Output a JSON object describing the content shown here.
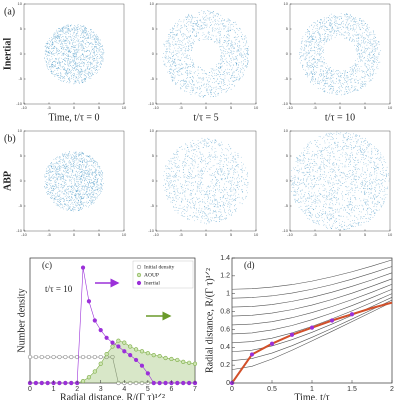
{
  "chart_data": [
    {
      "type": "particles",
      "panel_label": "(a)",
      "row_label": "Inertial",
      "xlabel": "Time, t/τ = 0",
      "xlim": [
        -10,
        10
      ],
      "ylim": [
        -10,
        10
      ],
      "xticks": [
        -10,
        -5,
        0,
        5,
        10
      ],
      "yticks": [
        -10,
        -5,
        0,
        5,
        10
      ],
      "color": "#3a8fc0"
    },
    {
      "type": "particles",
      "xlabel": "t/τ = 5",
      "xlim": [
        -10,
        10
      ],
      "ylim": [
        -10,
        10
      ],
      "xticks": [
        -10,
        -5,
        0,
        5,
        10
      ],
      "yticks": [
        -10,
        -5,
        0,
        5,
        10
      ],
      "color": "#3a8fc0"
    },
    {
      "type": "particles",
      "xlabel": "t/τ = 10",
      "xlim": [
        -10,
        10
      ],
      "ylim": [
        -10,
        10
      ],
      "xticks": [
        -10,
        -5,
        0,
        5,
        10
      ],
      "yticks": [
        -10,
        -5,
        0,
        5,
        10
      ],
      "color": "#3a8fc0"
    },
    {
      "type": "particles",
      "panel_label": "(b)",
      "row_label": "ABP",
      "xlim": [
        -10,
        10
      ],
      "ylim": [
        -10,
        10
      ],
      "xticks": [
        -10,
        -5,
        0,
        5,
        10
      ],
      "yticks": [
        -10,
        -5,
        0,
        5,
        10
      ],
      "color": "#3a8fc0"
    },
    {
      "type": "particles",
      "xlim": [
        -10,
        10
      ],
      "ylim": [
        -10,
        10
      ],
      "xticks": [
        -10,
        -5,
        0,
        5,
        10
      ],
      "yticks": [
        -10,
        -5,
        0,
        5,
        10
      ],
      "color": "#3a8fc0"
    },
    {
      "type": "particles",
      "xlim": [
        -10,
        10
      ],
      "ylim": [
        -10,
        10
      ],
      "xticks": [
        -10,
        -5,
        0,
        5,
        10
      ],
      "yticks": [
        -10,
        -5,
        0,
        5,
        10
      ],
      "color": "#3a8fc0"
    },
    {
      "type": "line",
      "panel_label": "(c)",
      "annotation": "t/τ = 10",
      "xlabel": "Radial distance, R/(Γ τ)¹ᐟ²",
      "ylabel": "Number density",
      "xlim": [
        0,
        7
      ],
      "ylim": [
        0,
        1.3
      ],
      "xticks": [
        0,
        1,
        2,
        3,
        4,
        5,
        6,
        7
      ],
      "legend": "top-right",
      "x": [
        0,
        0.25,
        0.5,
        0.75,
        1,
        1.25,
        1.5,
        1.75,
        2,
        2.25,
        2.5,
        2.75,
        3,
        3.25,
        3.5,
        3.75,
        4,
        4.25,
        4.5,
        4.75,
        5,
        5.25,
        5.5,
        5.75,
        6,
        6.25,
        6.5,
        6.75,
        7
      ],
      "series": [
        {
          "name": "Initial density",
          "color": "#8a8a8a",
          "marker": "open",
          "values": [
            0.27,
            0.27,
            0.27,
            0.27,
            0.27,
            0.27,
            0.27,
            0.27,
            0.27,
            0.27,
            0.27,
            0.27,
            0.27,
            0.27,
            0.27,
            0,
            0,
            0,
            0,
            0,
            0,
            0,
            0,
            0,
            0,
            0,
            0,
            0,
            0
          ]
        },
        {
          "name": "AOUP",
          "color": "#7fae4a",
          "marker": "light",
          "area": true,
          "values": [
            0,
            0,
            0,
            0,
            0,
            0,
            0,
            0,
            0,
            0.02,
            0.06,
            0.12,
            0.2,
            0.3,
            0.38,
            0.44,
            0.42,
            0.38,
            0.35,
            0.33,
            0.31,
            0.29,
            0.28,
            0.26,
            0.25,
            0.24,
            0.22,
            0.21,
            0.2
          ]
        },
        {
          "name": "Inertial",
          "color": "#9b30d9",
          "marker": "filled",
          "values": [
            0,
            0,
            0,
            0,
            0,
            0,
            0,
            0,
            0,
            1.2,
            0.85,
            0.65,
            0.55,
            0.47,
            0.42,
            0.38,
            0.33,
            0.29,
            0.24,
            0.18,
            0.1,
            0,
            0,
            0,
            0,
            0,
            0,
            0,
            0
          ]
        }
      ]
    },
    {
      "type": "line",
      "panel_label": "(d)",
      "xlabel": "Time, t/τ",
      "ylabel": "Radial distance, R/(Γ τ)¹ᐟ²",
      "xlim": [
        0,
        2
      ],
      "ylim": [
        0,
        1.4
      ],
      "xticks": [
        0,
        0.5,
        1,
        1.5,
        2
      ],
      "yticks": [
        0,
        0.2,
        0.4,
        0.6,
        0.8,
        1,
        1.2,
        1.4
      ],
      "x": [
        0,
        0.25,
        0.5,
        0.75,
        1,
        1.25,
        1.5,
        1.75,
        2
      ],
      "series": [
        {
          "color": "#555555",
          "values": [
            0.15,
            0.187,
            0.269,
            0.367,
            0.472,
            0.579,
            0.687,
            0.797,
            0.907
          ]
        },
        {
          "color": "#555555",
          "values": [
            0.25,
            0.274,
            0.335,
            0.418,
            0.512,
            0.612,
            0.716,
            0.822,
            0.929
          ]
        },
        {
          "color": "#555555",
          "values": [
            0.35,
            0.367,
            0.415,
            0.485,
            0.568,
            0.66,
            0.757,
            0.857,
            0.96
          ]
        },
        {
          "color": "#555555",
          "values": [
            0.45,
            0.464,
            0.502,
            0.561,
            0.634,
            0.718,
            0.808,
            0.903,
            1.001
          ]
        },
        {
          "color": "#555555",
          "values": [
            0.55,
            0.561,
            0.594,
            0.644,
            0.709,
            0.784,
            0.867,
            0.957,
            1.05
          ]
        },
        {
          "color": "#555555",
          "values": [
            0.65,
            0.66,
            0.687,
            0.731,
            0.789,
            0.857,
            0.934,
            1.017,
            1.106
          ]
        },
        {
          "color": "#555555",
          "values": [
            0.75,
            0.758,
            0.783,
            0.822,
            0.873,
            0.935,
            1.006,
            1.084,
            1.167
          ]
        },
        {
          "color": "#555555",
          "values": [
            0.85,
            0.857,
            0.879,
            0.914,
            0.96,
            1.017,
            1.083,
            1.155,
            1.234
          ]
        },
        {
          "color": "#555555",
          "values": [
            0.95,
            0.957,
            0.976,
            1.007,
            1.05,
            1.102,
            1.163,
            1.231,
            1.305
          ]
        },
        {
          "color": "#555555",
          "values": [
            1.05,
            1.056,
            1.074,
            1.102,
            1.141,
            1.19,
            1.246,
            1.31,
            1.379
          ]
        },
        {
          "color": "#d2502a",
          "width": 2,
          "values": [
            0,
            0.32,
            0.44,
            0.54,
            0.62,
            0.7,
            0.77,
            0.84,
            0.9
          ]
        },
        {
          "color": "#9b30d9",
          "marker": "filled",
          "noline": true,
          "values": [
            0,
            0.32,
            0.44,
            0.54,
            0.62,
            0.7,
            0.77,
            null,
            null
          ]
        }
      ]
    }
  ]
}
